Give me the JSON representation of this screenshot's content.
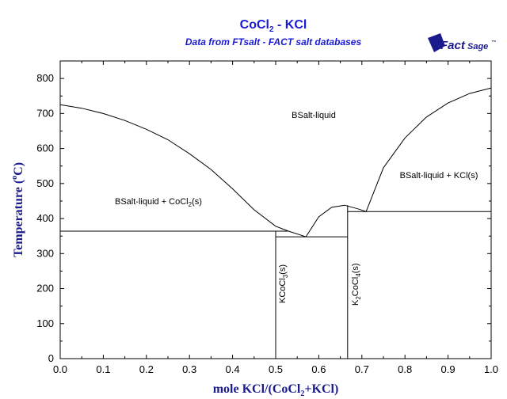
{
  "chart_data": {
    "type": "line",
    "title": "CoCl",
    "title_sub": "2",
    "title_rest": " - KCl",
    "subtitle": "Data from FTsalt - FACT salt databases",
    "logo": {
      "brand": "FactSage",
      "part1": "Fact",
      "part2": "Sage",
      "tm": "™"
    },
    "xlabel": {
      "pre": "mole KCl/(CoCl",
      "sub": "2",
      "post": "+KCl)"
    },
    "ylabel": "Temperature (°C)",
    "ylabel_parts": {
      "pre": "Temperature (",
      "sup": "o",
      "post": "C)"
    },
    "xlim": [
      0,
      1
    ],
    "ylim": [
      0,
      850
    ],
    "xticks": [
      "0.0",
      "0.1",
      "0.2",
      "0.3",
      "0.4",
      "0.5",
      "0.6",
      "0.7",
      "0.8",
      "0.9",
      "1.0"
    ],
    "yticks": [
      "0",
      "100",
      "200",
      "300",
      "400",
      "500",
      "600",
      "700",
      "800"
    ],
    "grid": false,
    "series": [
      {
        "x": [
          0.0,
          0.05,
          0.1,
          0.15,
          0.2,
          0.25,
          0.3,
          0.35,
          0.4,
          0.45,
          0.5,
          0.53
        ],
        "y": [
          725,
          715,
          700,
          680,
          655,
          625,
          585,
          540,
          485,
          425,
          378,
          364
        ]
      },
      {
        "x": [
          0.53,
          0.57
        ],
        "y": [
          364,
          348
        ]
      },
      {
        "x": [
          0.57,
          0.6,
          0.63,
          0.66,
          0.69
        ],
        "y": [
          348,
          405,
          432,
          438,
          428
        ]
      },
      {
        "x": [
          0.69,
          0.71
        ],
        "y": [
          428,
          420
        ]
      },
      {
        "x": [
          0.71,
          0.75,
          0.8,
          0.85,
          0.9,
          0.95,
          1.0
        ],
        "y": [
          420,
          545,
          630,
          690,
          730,
          757,
          773
        ]
      },
      {
        "x": [
          0.0,
          0.53
        ],
        "y": [
          364,
          364
        ]
      },
      {
        "x": [
          0.5,
          0.667
        ],
        "y": [
          348,
          348
        ]
      },
      {
        "x": [
          0.667,
          1.0
        ],
        "y": [
          420,
          420
        ]
      },
      {
        "x": [
          0.5,
          0.5
        ],
        "y": [
          0,
          364
        ]
      },
      {
        "x": [
          0.667,
          0.667
        ],
        "y": [
          0,
          438
        ]
      }
    ],
    "regions": {
      "liquid": "BSalt-liquid",
      "left": {
        "pre": "BSalt-liquid + CoCl",
        "sub": "2",
        "post": "(s)"
      },
      "right": "BSalt-liquid + KCl(s)",
      "kcocl3": {
        "pre": "KCoCl",
        "sub": "3",
        "post": "(s)"
      },
      "k2cocl4": {
        "a": "K",
        "sub1": "2",
        "b": "CoCl",
        "sub2": "4",
        "c": "(s)"
      }
    },
    "colors": {
      "title": "#1a1ad6",
      "axis_label": "#1a1a8c",
      "line": "#000000"
    }
  }
}
